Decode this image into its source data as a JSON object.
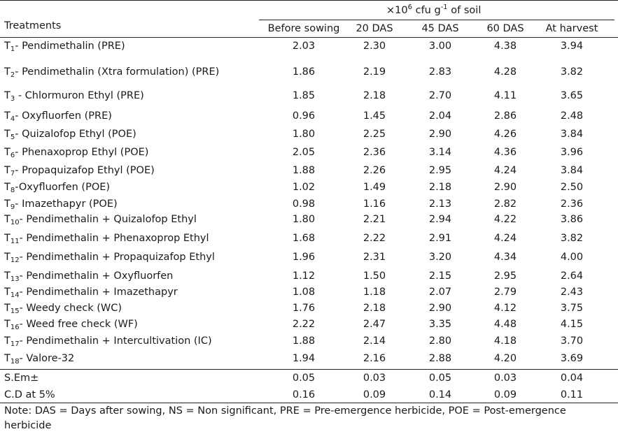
{
  "header": {
    "unit_prefix": "×10",
    "unit_exp": "6",
    "unit_mid": " cfu g",
    "unit_exp2": "-1",
    "unit_suffix": " of soil",
    "treatments_label": "Treatments",
    "columns": [
      "Before sowing",
      "20 DAS",
      "45 DAS",
      "60 DAS",
      "At harvest"
    ]
  },
  "rows": [
    {
      "t": "T",
      "sub": "1",
      "name": "- Pendimethalin (PRE)",
      "v": [
        "2.03",
        "2.30",
        "3.00",
        "4.38",
        "3.94"
      ]
    },
    {
      "t": "T",
      "sub": "2",
      "name": "- Pendimethalin (Xtra formulation) (PRE)",
      "v": [
        "1.86",
        "2.19",
        "2.83",
        "4.28",
        "3.82"
      ]
    },
    {
      "t": "T",
      "sub": "3",
      "name": " - Chlormuron Ethyl (PRE)",
      "v": [
        "1.85",
        "2.18",
        "2.70",
        "4.11",
        "3.65"
      ]
    },
    {
      "t": "T",
      "sub": "4",
      "name": "- Oxyfluorfen (PRE)",
      "v": [
        "0.96",
        "1.45",
        "2.04",
        "2.86",
        "2.48"
      ]
    },
    {
      "t": "T",
      "sub": "5",
      "name": "- Quizalofop Ethyl (POE)",
      "v": [
        "1.80",
        "2.25",
        "2.90",
        "4.26",
        "3.84"
      ]
    },
    {
      "t": "T",
      "sub": "6",
      "name": "- Phenaxoprop Ethyl (POE)",
      "v": [
        "2.05",
        "2.36",
        "3.14",
        "4.36",
        "3.96"
      ]
    },
    {
      "t": "T",
      "sub": "7",
      "name": "- Propaquizafop Ethyl (POE)",
      "v": [
        "1.88",
        "2.26",
        "2.95",
        "4.24",
        "3.84"
      ]
    },
    {
      "t": "T",
      "sub": "8",
      "name": "-Oxyfluorfen (POE)",
      "v": [
        "1.02",
        "1.49",
        "2.18",
        "2.90",
        "2.50"
      ]
    },
    {
      "t": "T",
      "sub": "9",
      "name": "- Imazethapyr (POE)",
      "v": [
        "0.98",
        "1.16",
        "2.13",
        "2.82",
        "2.36"
      ]
    },
    {
      "t": "T",
      "sub": "10",
      "name": "- Pendimethalin + Quizalofop Ethyl",
      "v": [
        "1.80",
        "2.21",
        "2.94",
        "4.22",
        "3.86"
      ]
    },
    {
      "t": "T",
      "sub": "11",
      "name": "-  Pendimethalin + Phenaxoprop Ethyl",
      "v": [
        "1.68",
        "2.22",
        "2.91",
        "4.24",
        "3.82"
      ]
    },
    {
      "t": "T",
      "sub": "12",
      "name": "- Pendimethalin + Propaquizafop Ethyl",
      "v": [
        "1.96",
        "2.31",
        "3.20",
        "4.34",
        "4.00"
      ]
    },
    {
      "t": "T",
      "sub": "13",
      "name": "- Pendimethalin + Oxyfluorfen",
      "v": [
        "1.12",
        "1.50",
        "2.15",
        "2.95",
        "2.64"
      ]
    },
    {
      "t": "T",
      "sub": "14",
      "name": "- Pendimethalin + Imazethapyr",
      "v": [
        "1.08",
        "1.18",
        "2.07",
        "2.79",
        "2.43"
      ]
    },
    {
      "t": "T",
      "sub": "15",
      "name": "- Weedy check (WC)",
      "v": [
        "1.76",
        "2.18",
        "2.90",
        "4.12",
        "3.75"
      ]
    },
    {
      "t": "T",
      "sub": "16",
      "name": "- Weed free check (WF)",
      "v": [
        "2.22",
        "2.47",
        "3.35",
        "4.48",
        "4.15"
      ]
    },
    {
      "t": "T",
      "sub": "17",
      "name": "- Pendimethalin + Intercultivation (IC)",
      "v": [
        "1.88",
        "2.14",
        "2.80",
        "4.18",
        "3.70"
      ]
    },
    {
      "t": "T",
      "sub": "18",
      "name": "- Valore-32",
      "v": [
        "1.94",
        "2.16",
        "2.88",
        "4.20",
        "3.69"
      ]
    }
  ],
  "stats": [
    {
      "label": "S.Em±",
      "v": [
        "0.05",
        "0.03",
        "0.05",
        "0.03",
        "0.04"
      ]
    },
    {
      "label": "C.D at 5%",
      "v": [
        "0.16",
        "0.09",
        "0.14",
        "0.09",
        "0.11"
      ]
    }
  ],
  "note": "Note: DAS = Days after sowing, NS = Non significant, PRE = Pre-emergence herbicide, POE = Post-emergence herbicide"
}
